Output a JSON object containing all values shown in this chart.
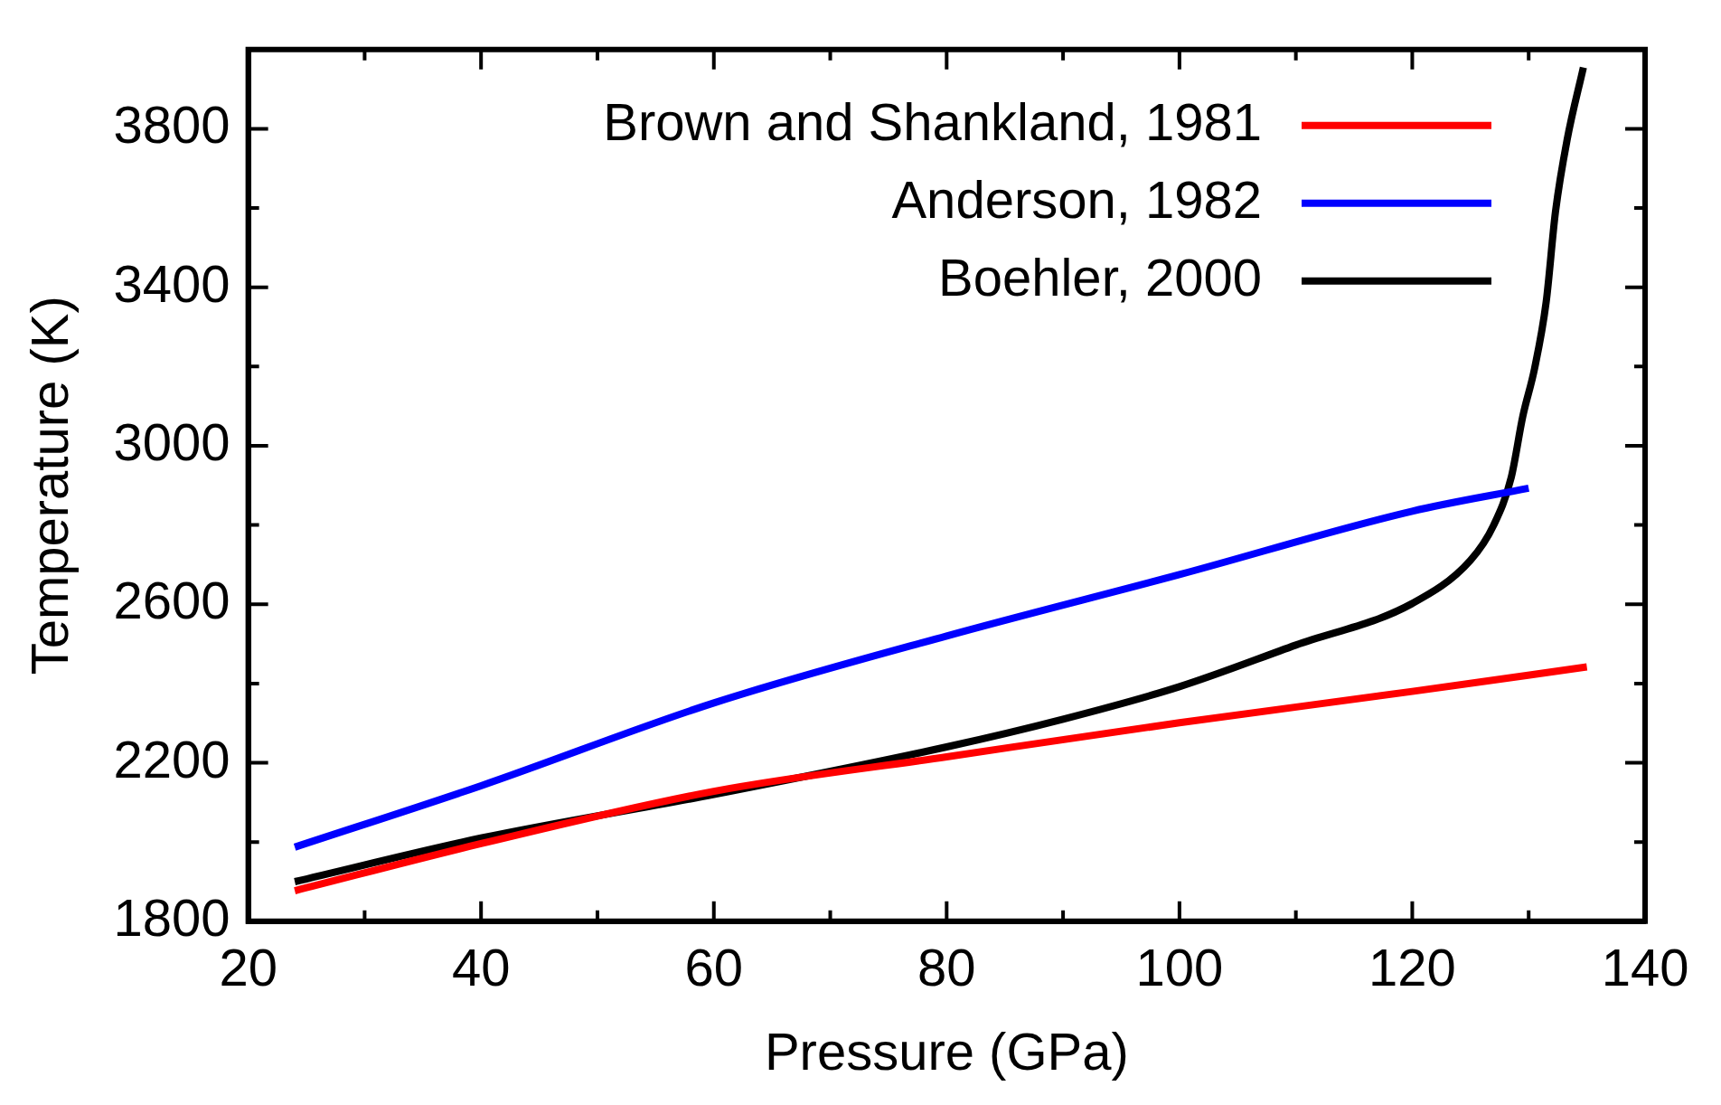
{
  "chart_data": {
    "type": "line",
    "xlabel": "Pressure (GPa)",
    "ylabel": "Temperature (K)",
    "xlim": [
      20,
      140
    ],
    "xticks": [
      20,
      {
        "value": 30,
        "label": null
      },
      40,
      {
        "value": 50,
        "label": null
      },
      60,
      {
        "value": 70,
        "label": null
      },
      80,
      {
        "value": 90,
        "label": null
      },
      100,
      {
        "value": 110,
        "label": null
      },
      120,
      {
        "value": 130,
        "label": null
      },
      140
    ],
    "ylim": [
      1800,
      4000
    ],
    "yticks": [
      1800,
      {
        "value": 2000,
        "label": null
      },
      2200,
      {
        "value": 2400,
        "label": null
      },
      2600,
      {
        "value": 2800,
        "label": null
      },
      3000,
      {
        "value": 3200,
        "label": null
      },
      3400,
      {
        "value": 3600,
        "label": null
      },
      3800
    ],
    "grid": false,
    "legend": "top right",
    "marker": "none",
    "line_style": "solid",
    "series": [
      {
        "name": "Brown and Shankland, 1981",
        "color": "#ff0000",
        "x": [
          24,
          40,
          60,
          80,
          100,
          120,
          135
        ],
        "values": [
          1877,
          1996,
          2128,
          2215,
          2301,
          2380,
          2442
        ]
      },
      {
        "name": "Anderson, 1982",
        "color": "#0000ff",
        "x": [
          24,
          40,
          60,
          80,
          100,
          120,
          130
        ],
        "values": [
          1987,
          2142,
          2351,
          2520,
          2675,
          2835,
          2893
        ]
      },
      {
        "name": "Boehler, 2000",
        "color": "#000000",
        "x": [
          24,
          40,
          60,
          80,
          90,
          100,
          110,
          120,
          125,
          127,
          128.5,
          129.5,
          130.5,
          131.5,
          132.3,
          133.3,
          134.7
        ],
        "values": [
          1900,
          2010,
          2120,
          2240,
          2310,
          2392,
          2497,
          2602,
          2711,
          2800,
          2920,
          3075,
          3194,
          3362,
          3590,
          3772,
          3955
        ]
      }
    ]
  }
}
